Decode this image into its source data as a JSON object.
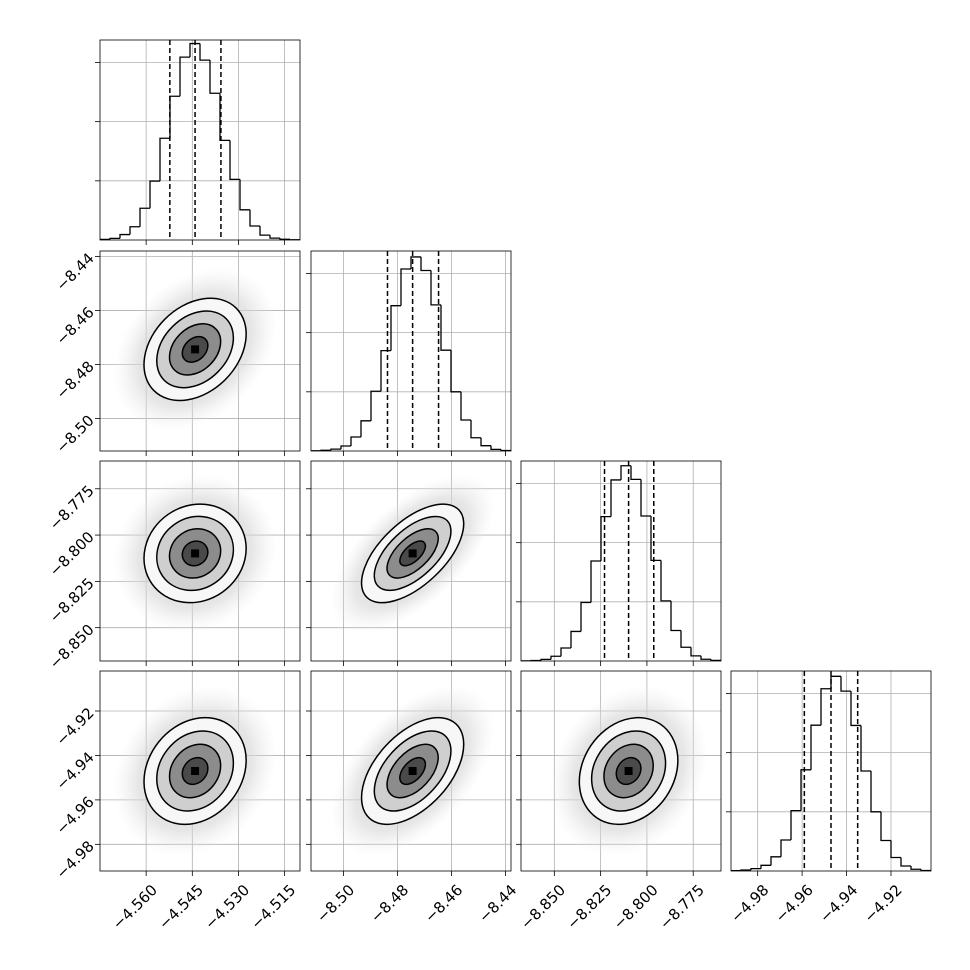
{
  "chart_data": {
    "type": "corner",
    "hist_ylim": [
      0,
      1690
    ],
    "hist_yticks": [
      500,
      1000,
      1500
    ],
    "contour_levels": [
      0.5,
      1,
      1.5,
      2
    ],
    "correlations": [
      0.3,
      0.1,
      0.6,
      0.2,
      0.5,
      0.2
    ],
    "parameters": [
      {
        "lim": [
          -4.575,
          -4.51
        ],
        "ticks": [
          {
            "value": -4.56,
            "label": "−4.560"
          },
          {
            "value": -4.545,
            "label": "−4.545"
          },
          {
            "value": -4.53,
            "label": "−4.530"
          },
          {
            "value": -4.515,
            "label": "−4.515"
          }
        ],
        "quantiles": [
          -4.5523,
          -4.5441,
          -4.5357
        ],
        "bins": [
          -4.575,
          -4.57175,
          -4.5685,
          -4.56525,
          -4.562,
          -4.55875,
          -4.5555,
          -4.55225,
          -4.549,
          -4.54575,
          -4.5425,
          -4.53925,
          -4.536,
          -4.53275,
          -4.5295,
          -4.52625,
          -4.523,
          -4.51975,
          -4.5165,
          -4.51325,
          -4.51
        ],
        "counts": [
          5,
          14,
          46,
          112,
          268,
          498,
          860,
          1215,
          1545,
          1660,
          1520,
          1240,
          842,
          512,
          255,
          118,
          41,
          16,
          6,
          2
        ]
      },
      {
        "lim": [
          -8.512,
          -8.438
        ],
        "ticks": [
          {
            "value": -8.5,
            "label": "−8.50"
          },
          {
            "value": -8.48,
            "label": "−8.48"
          },
          {
            "value": -8.46,
            "label": "−8.46"
          },
          {
            "value": -8.44,
            "label": "−8.44"
          }
        ],
        "quantiles": [
          -8.4837,
          -8.4744,
          -8.4648
        ],
        "bins": [
          -8.512,
          -8.5083,
          -8.5046,
          -8.5009,
          -8.4972,
          -8.4935,
          -8.4898,
          -8.4861,
          -8.4824,
          -8.4787,
          -8.475,
          -8.4713,
          -8.4676,
          -8.4639,
          -8.4602,
          -8.4565,
          -8.4528,
          -8.4491,
          -8.4454,
          -8.4417,
          -8.438
        ],
        "counts": [
          2,
          6,
          16,
          42,
          118,
          255,
          505,
          848,
          1228,
          1538,
          1640,
          1525,
          1235,
          852,
          500,
          262,
          112,
          45,
          14,
          4
        ]
      },
      {
        "lim": [
          -8.868,
          -8.76
        ],
        "ticks": [
          {
            "value": -8.85,
            "label": "−8.850"
          },
          {
            "value": -8.825,
            "label": "−8.825"
          },
          {
            "value": -8.8,
            "label": "−8.800"
          },
          {
            "value": -8.775,
            "label": "−8.775"
          }
        ],
        "quantiles": [
          -8.8229,
          -8.8099,
          -8.7963
        ],
        "bins": [
          -8.868,
          -8.8626,
          -8.8572,
          -8.8518,
          -8.8464,
          -8.841,
          -8.8356,
          -8.8302,
          -8.8248,
          -8.8194,
          -8.814,
          -8.8086,
          -8.8032,
          -8.7978,
          -8.7924,
          -8.787,
          -8.7816,
          -8.7762,
          -8.7708,
          -8.7654,
          -8.76
        ],
        "counts": [
          1,
          4,
          14,
          40,
          110,
          250,
          495,
          845,
          1220,
          1530,
          1650,
          1535,
          1225,
          850,
          508,
          258,
          116,
          43,
          15,
          5
        ]
      },
      {
        "lim": [
          -4.992,
          -4.902
        ],
        "ticks": [
          {
            "value": -4.98,
            "label": "−4.98"
          },
          {
            "value": -4.96,
            "label": "−4.96"
          },
          {
            "value": -4.94,
            "label": "−4.94"
          },
          {
            "value": -4.92,
            "label": "−4.92"
          }
        ],
        "quantiles": [
          -4.959,
          -4.947,
          -4.935
        ],
        "bins": [
          -4.992,
          -4.9875,
          -4.983,
          -4.9785,
          -4.974,
          -4.9695,
          -4.965,
          -4.9605,
          -4.956,
          -4.9515,
          -4.947,
          -4.9425,
          -4.938,
          -4.9335,
          -4.929,
          -4.9245,
          -4.92,
          -4.9155,
          -4.911,
          -4.9065,
          -4.902
        ],
        "counts": [
          3,
          8,
          20,
          48,
          120,
          262,
          510,
          855,
          1232,
          1540,
          1645,
          1520,
          1230,
          845,
          500,
          258,
          114,
          42,
          15,
          4
        ]
      }
    ]
  }
}
